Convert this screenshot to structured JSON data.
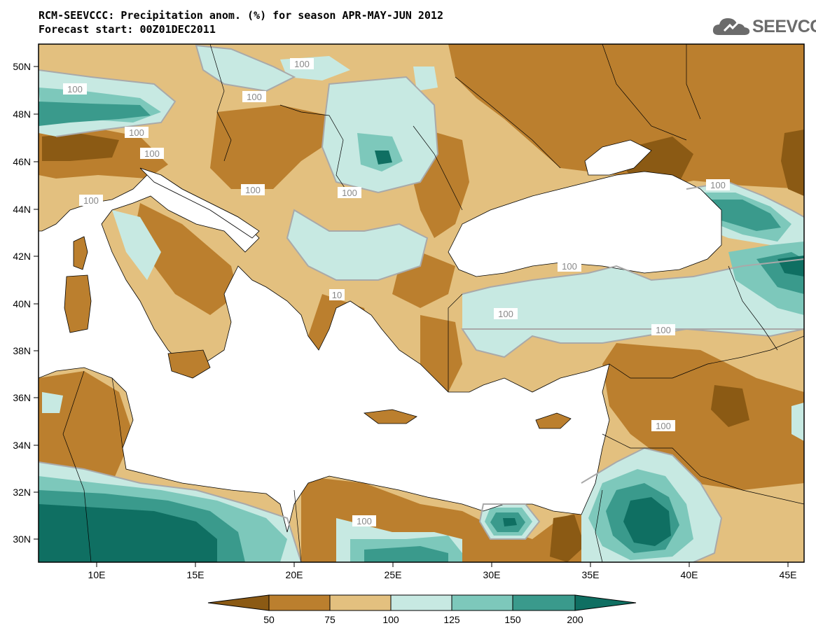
{
  "title": {
    "line1": "RCM-SEEVCCC: Precipitation anom. (%) for season APR-MAY-JUN 2012",
    "line2": "Forecast start: 00Z01DEC2011"
  },
  "logo": {
    "text": "SEEVCCC",
    "icon": "cloud-icon"
  },
  "axes": {
    "lat_labels": [
      "50N",
      "48N",
      "46N",
      "44N",
      "42N",
      "40N",
      "38N",
      "36N",
      "34N",
      "32N",
      "30N"
    ],
    "lon_labels": [
      "10E",
      "15E",
      "20E",
      "25E",
      "30E",
      "35E",
      "40E",
      "45E"
    ]
  },
  "contour_labels": [
    "100",
    "100",
    "100",
    "100",
    "100",
    "100",
    "100",
    "100",
    "100",
    "100",
    "100",
    "100",
    "100",
    "10",
    "100"
  ],
  "colorbar": {
    "labels": [
      "50",
      "75",
      "100",
      "125",
      "150",
      "200"
    ],
    "colors": [
      "#8b5a14",
      "#bb7f2e",
      "#e3c07f",
      "#c7e9e2",
      "#7dc8bb",
      "#3a9a8c",
      "#0f6f62"
    ]
  },
  "colors": {
    "land_base": "#e3c07f",
    "dry": "#bb7f2e",
    "very_dry": "#8b5a14",
    "wet": "#c7e9e2",
    "wetter": "#7dc8bb",
    "very_wet": "#3a9a8c",
    "extreme_wet": "#0f6f62",
    "sea": "#ffffff"
  }
}
